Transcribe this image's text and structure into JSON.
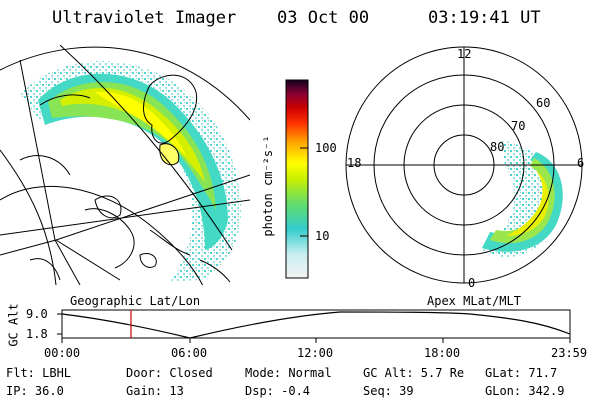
{
  "header": {
    "instrument": "Ultraviolet Imager",
    "date": "03 Oct 00",
    "time": "03:19:41 UT"
  },
  "left_panel": {
    "caption": "Geographic Lat/Lon"
  },
  "right_panel": {
    "caption": "Apex MLat/MLT",
    "mlt_labels": [
      "12",
      "18",
      "6",
      "0"
    ],
    "lat_labels": [
      "60",
      "70",
      "80"
    ]
  },
  "colorbar": {
    "label": "photon cm⁻²s⁻¹",
    "ticks": [
      "100",
      "10"
    ]
  },
  "altitude_plot": {
    "ylabel": "GC Alt",
    "y_ticks": [
      "9.0",
      "1.8"
    ],
    "x_ticks": [
      "00:00",
      "06:00",
      "12:00",
      "18:00",
      "23:59"
    ]
  },
  "status": {
    "filter": "Flt: LBHL",
    "ip": "IP: 36.0",
    "door": "Door: Closed",
    "gain": "Gain: 13",
    "mode": "Mode: Normal",
    "dsp": "Dsp:   -0.4",
    "gc_alt": "GC Alt: 5.7 Re",
    "seq": "Seq: 39",
    "glat": "GLat:  71.7",
    "glon": "GLon: 342.9"
  }
}
